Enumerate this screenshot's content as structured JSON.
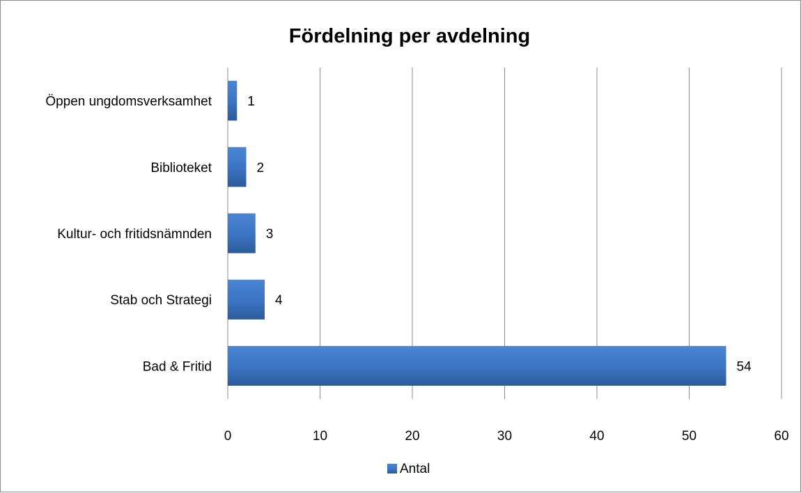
{
  "chart_data": {
    "type": "bar",
    "orientation": "horizontal",
    "title": "Fördelning per avdelning",
    "xlabel": "",
    "ylabel": "",
    "categories": [
      "Öppen ungdomsverksamhet",
      "Biblioteket",
      "Kultur- och fritidsnämnden",
      "Stab och Strategi",
      "Bad & Fritid"
    ],
    "series": [
      {
        "name": "Antal",
        "values": [
          1,
          2,
          3,
          4,
          54
        ]
      }
    ],
    "xlim": [
      0,
      60
    ],
    "xticks": [
      0,
      10,
      20,
      30,
      40,
      50,
      60
    ],
    "grid": true,
    "legend": "bottom",
    "data_labels": true,
    "colors": {
      "bar": "#3c78c8",
      "bar_dark": "#2e5f9e",
      "grid": "#8c8c8c"
    }
  }
}
